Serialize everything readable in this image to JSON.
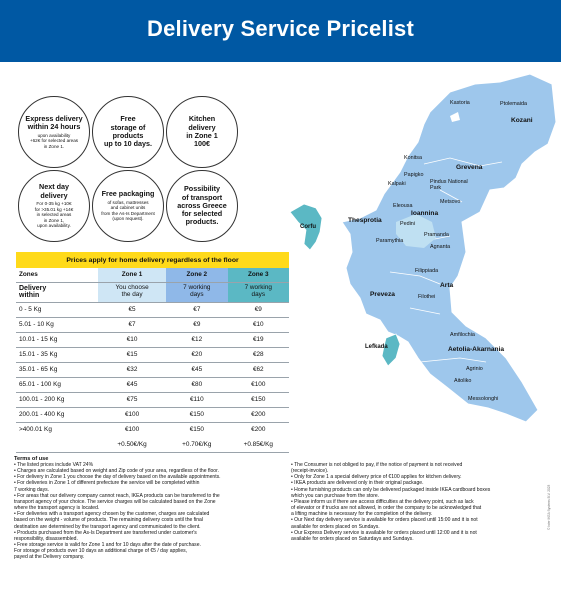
{
  "header": {
    "title": "Delivery Service Pricelist"
  },
  "colors": {
    "brand_blue": "#0058a3",
    "banner_yellow": "#ffda1a",
    "zone1": "#cfe6f5",
    "zone2": "#8fb8e8",
    "zone3": "#5bb8c4",
    "map_region": "#9ec7ec",
    "map_highlight": "#5bb8c4"
  },
  "circles": [
    {
      "big": "Express delivery\nwithin 24 hours",
      "small": "upon availability\n+62€ for selected areas\nin Zone 1."
    },
    {
      "big": "Free\nstorage of\nproducts\nup to 10 days.",
      "small": ""
    },
    {
      "big": "Kitchen\ndelivery\nin Zone 1\n100€",
      "small": ""
    },
    {
      "big": "Next day\ndelivery",
      "small": "For 0-35 kg +10€\nfor >35.01 kg +14€\nin selected areas\nin Zone 1,\nupon availability."
    },
    {
      "big": "Free packaging",
      "small": "of sofas, mattresses\nand cabinet units\nfrom the As-Is Department\n(upon request)."
    },
    {
      "big": "Possibility\nof transport\nacross Greece\nfor selected\nproducts.",
      "small": ""
    }
  ],
  "table": {
    "banner": "Prices apply for home delivery regardless of the floor",
    "zones_label": "Zones",
    "zone_headers": [
      "Zone 1",
      "Zone 2",
      "Zone 3"
    ],
    "delivery_label": "Delivery\nwithin",
    "delivery_values": [
      "You choose\nthe day",
      "7 working\ndays",
      "7 working\ndays"
    ],
    "rows": [
      {
        "weight": "0 - 5 Kg",
        "z1": "€5",
        "z2": "€7",
        "z3": "€9"
      },
      {
        "weight": "5.01 - 10 Kg",
        "z1": "€7",
        "z2": "€9",
        "z3": "€10"
      },
      {
        "weight": "10.01 - 15 Kg",
        "z1": "€10",
        "z2": "€12",
        "z3": "€19"
      },
      {
        "weight": "15.01 - 35 Kg",
        "z1": "€15",
        "z2": "€20",
        "z3": "€28"
      },
      {
        "weight": "35.01 - 65 Kg",
        "z1": "€32",
        "z2": "€45",
        "z3": "€62"
      },
      {
        "weight": "65.01 - 100 Kg",
        "z1": "€45",
        "z2": "€80",
        "z3": "€100"
      },
      {
        "weight": "100.01 - 200 Kg",
        "z1": "€75",
        "z2": "€110",
        "z3": "€150"
      },
      {
        "weight": "200.01 - 400 Kg",
        "z1": "€100",
        "z2": "€150",
        "z3": "€200"
      },
      {
        "weight": ">400.01 Kg",
        "z1": "€100",
        "z2": "€150",
        "z3": "€200"
      }
    ],
    "extra": {
      "z1": "+0.50€/Kg",
      "z2": "+0.70€/Kg",
      "z3": "+0.85€/Kg"
    }
  },
  "terms": {
    "title": "Terms of use",
    "left": [
      "• The listed prices include VAT 24%",
      "• Charges are calculated based on weight and Zip code of your area, regardless of the floor.",
      "• For delivery in Zone 1 you choose the day of delivery based on the available appointments.",
      "• For deliveries in Zone 1 of different prefecture the service will be completed within\n  7 working days.",
      "• For areas that our delivery company cannot reach, IKEA products can be transferred to the\n  transport agency of your choice. The service charges will be calculated based on the Zone\n  where the transport agency is located.",
      "• For deliveries with a transport agency chosen by the customer, charges are calculated\n  based on the weight - volume of products. The remaining delivery costs until the final\n  destination are determined by the transport agency and communicated to the client.",
      "• Products purchased from the As-Is Department are transferred under customer's\n  responsibility, disassembled.",
      "• Free storage service is valid for Zone 1 and for 10 days after the date of purchase.\n  For storage of products over 10 days an additional charge of €5 / day applies,\n  payed at the Delivery company."
    ],
    "right": [
      "• The Consumer is not obliged to pay, if the notice of payment is not received\n  (receipt-invoice).",
      "• Only for Zone 1 a special delivery price of €100 applies for kitchen delivery.",
      "• IKEA products are delivered only in their original package.",
      "• Home furnishing products can only be delivered packaged inside IKEA cardboard boxes\n  which you can purchase from the store.",
      "• Please inform us if there are access difficulties at the delivery point, such as lack\n  of elevator or if trucks are not allowed, in order the company to be acknowledged that\n  a lifting machine is necessary for the completion of the delivery.",
      "• Our Next day delivery service is available for orders placed until 15:00 and it is not\n  available for orders placed on Sundays.",
      "• Our Express Delivery service is available for orders placed until 12:00 and it is not\n  available for orders placed on Saturdays and Sundays."
    ]
  },
  "map": {
    "labels": {
      "kastoria": "Kastoria",
      "ptolemaida": "Ptolemaida",
      "kozani": "Kozani",
      "grevena": "Grevena",
      "konitsa": "Konitsa",
      "papigko": "Papigko",
      "kalpaki": "Kalpaki",
      "pindus": "Pindus National\nPark",
      "eleousa": "Eleousa",
      "metsovo": "Metsovo",
      "ioannina": "Ioannina",
      "pedini": "Pedini",
      "thesprotia": "Thesprotia",
      "corfu": "Corfu",
      "paramythia": "Paramythia",
      "pramanda": "Pramanda",
      "agnanta": "Agnanta",
      "filippiada": "Filippiada",
      "arta": "Arta",
      "preveza": "Preveza",
      "filothei": "Filothei",
      "amfilochia": "Amfilochia",
      "lefkada": "Lefkada",
      "aetolia": "Aetolia-Akarnania",
      "agrinio": "Agrinio",
      "aitoliko": "Aitoliko",
      "messolonghi": "Messolonghi"
    }
  },
  "side_note": "© Inter IKEA Systems B.V. 2023"
}
